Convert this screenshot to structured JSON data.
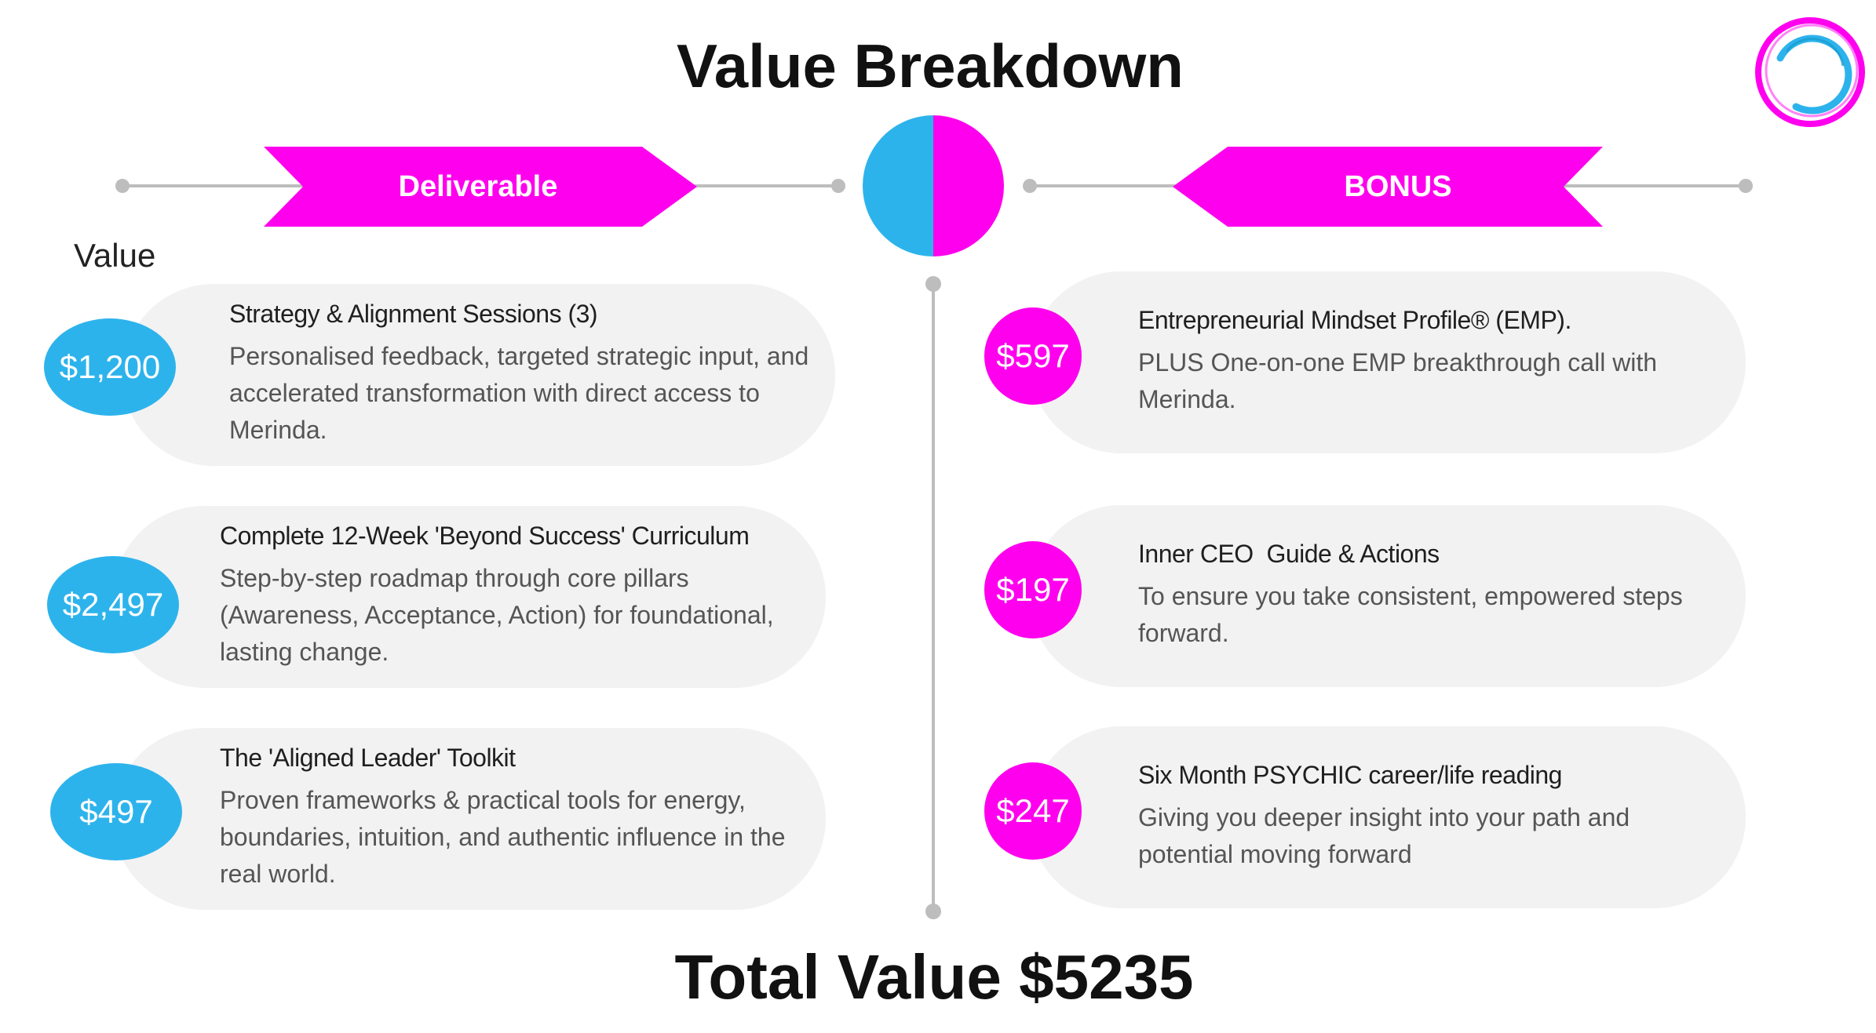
{
  "title": "Value Breakdown",
  "total": "Total Value $5235",
  "column_label": "Value",
  "banners": {
    "left": "Deliverable",
    "right": "BONUS"
  },
  "colors": {
    "blue": "#2db3ec",
    "pink": "#ff00ee",
    "card": "#f2f2f2",
    "line": "#bdbdbd"
  },
  "deliverables": [
    {
      "price": "$1,200",
      "title": "Strategy & Alignment Sessions (3)",
      "description": "Personalised feedback, targeted strategic input, and accelerated transformation with direct access to Merinda."
    },
    {
      "price": "$2,497",
      "title": "Complete 12-Week 'Beyond Success' Curriculum",
      "description": "Step-by-step roadmap through core pillars (Awareness, Acceptance, Action) for foundational, lasting change."
    },
    {
      "price": "$497",
      "title": "The 'Aligned Leader' Toolkit",
      "description": "Proven frameworks & practical tools for energy, boundaries, intuition, and authentic influence in the real world."
    }
  ],
  "bonuses": [
    {
      "price": "$597",
      "title": "Entrepreneurial Mindset Profile® (EMP).",
      "description": "PLUS One-on-one EMP breakthrough call with Merinda."
    },
    {
      "price": "$197",
      "title": "Inner CEO  Guide & Actions",
      "description": "To ensure you take consistent, empowered steps forward."
    },
    {
      "price": "$247",
      "title": "Six Month PSYCHIC career/life reading",
      "description": "Giving you deeper insight into your path and potential moving forward"
    }
  ]
}
